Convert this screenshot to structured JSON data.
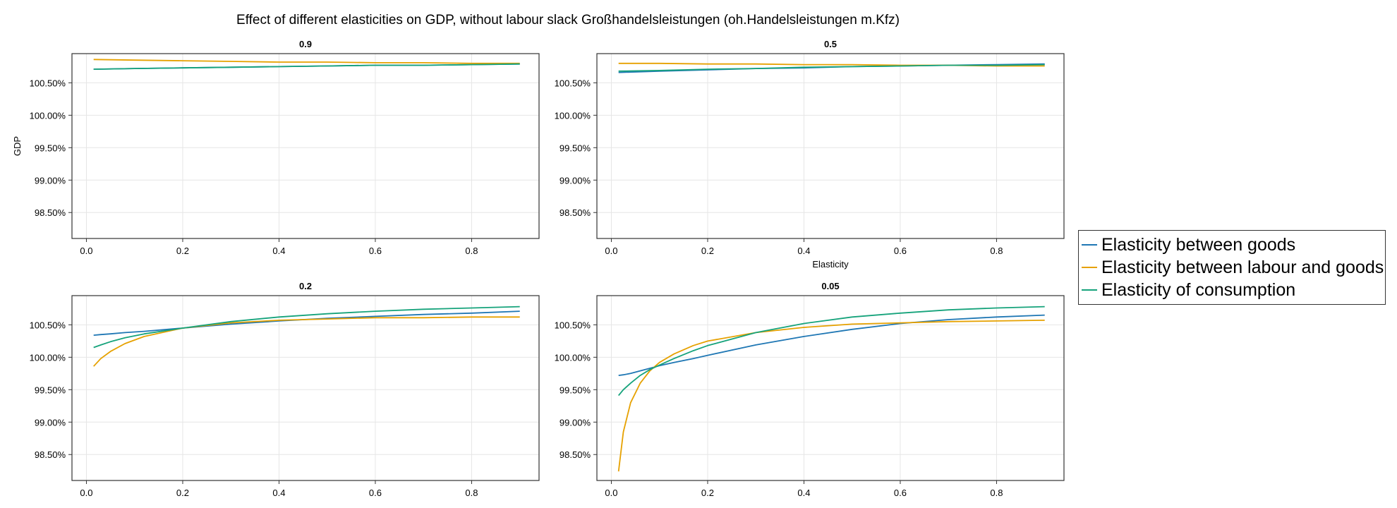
{
  "title": "Effect of different elasticities on GDP, without labour slack Großhandelsleistungen (oh.Handelsleistungen m.Kfz)",
  "legend": [
    {
      "name": "Elasticity between goods",
      "color": "#1f77b4"
    },
    {
      "name": "Elasticity between labour and goods",
      "color": "#e6a100"
    },
    {
      "name": "Elasticity of consumption",
      "color": "#16a37b"
    }
  ],
  "chart_data": [
    {
      "type": "line",
      "title": "0.9",
      "xlabel": "",
      "ylabel": "GDP",
      "xlim": [
        -0.03,
        0.94
      ],
      "ylim": [
        98.1,
        100.95
      ],
      "xticks": [
        "0.0",
        "0.2",
        "0.4",
        "0.6",
        "0.8"
      ],
      "yticks": [
        "98.50%",
        "99.00%",
        "99.50%",
        "100.00%",
        "100.50%"
      ],
      "x": [
        0.015,
        0.1,
        0.2,
        0.3,
        0.4,
        0.5,
        0.6,
        0.7,
        0.8,
        0.9
      ],
      "series": [
        {
          "name": "Elasticity between goods",
          "values": [
            100.71,
            100.72,
            100.73,
            100.74,
            100.75,
            100.76,
            100.77,
            100.77,
            100.78,
            100.79
          ]
        },
        {
          "name": "Elasticity between labour and goods",
          "values": [
            100.86,
            100.85,
            100.84,
            100.83,
            100.82,
            100.82,
            100.81,
            100.81,
            100.8,
            100.8
          ]
        },
        {
          "name": "Elasticity of consumption",
          "values": [
            100.71,
            100.72,
            100.73,
            100.74,
            100.75,
            100.76,
            100.77,
            100.77,
            100.78,
            100.79
          ]
        }
      ]
    },
    {
      "type": "line",
      "title": "0.5",
      "xlabel": "Elasticity",
      "ylabel": "",
      "xlim": [
        -0.03,
        0.94
      ],
      "ylim": [
        98.1,
        100.95
      ],
      "xticks": [
        "0.0",
        "0.2",
        "0.4",
        "0.6",
        "0.8"
      ],
      "yticks": [
        "98.50%",
        "99.00%",
        "99.50%",
        "100.00%",
        "100.50%"
      ],
      "x": [
        0.015,
        0.1,
        0.2,
        0.3,
        0.4,
        0.5,
        0.6,
        0.7,
        0.8,
        0.9
      ],
      "series": [
        {
          "name": "Elasticity between goods",
          "values": [
            100.66,
            100.68,
            100.7,
            100.72,
            100.73,
            100.75,
            100.76,
            100.77,
            100.78,
            100.79
          ]
        },
        {
          "name": "Elasticity between labour and goods",
          "values": [
            100.8,
            100.8,
            100.79,
            100.79,
            100.78,
            100.78,
            100.77,
            100.77,
            100.76,
            100.76
          ]
        },
        {
          "name": "Elasticity of consumption",
          "values": [
            100.68,
            100.69,
            100.71,
            100.72,
            100.74,
            100.75,
            100.76,
            100.77,
            100.77,
            100.78
          ]
        }
      ]
    },
    {
      "type": "line",
      "title": "0.2",
      "xlabel": "",
      "ylabel": "",
      "xlim": [
        -0.03,
        0.94
      ],
      "ylim": [
        98.1,
        100.95
      ],
      "xticks": [
        "0.0",
        "0.2",
        "0.4",
        "0.6",
        "0.8"
      ],
      "yticks": [
        "98.50%",
        "99.00%",
        "99.50%",
        "100.00%",
        "100.50%"
      ],
      "x": [
        0.015,
        0.03,
        0.05,
        0.08,
        0.12,
        0.2,
        0.3,
        0.4,
        0.5,
        0.6,
        0.7,
        0.8,
        0.9
      ],
      "series": [
        {
          "name": "Elasticity between goods",
          "values": [
            100.34,
            100.35,
            100.36,
            100.38,
            100.4,
            100.45,
            100.51,
            100.56,
            100.6,
            100.63,
            100.66,
            100.68,
            100.71
          ]
        },
        {
          "name": "Elasticity between labour and goods",
          "values": [
            99.86,
            99.98,
            100.09,
            100.21,
            100.32,
            100.45,
            100.53,
            100.57,
            100.59,
            100.61,
            100.61,
            100.62,
            100.62
          ]
        },
        {
          "name": "Elasticity of consumption",
          "values": [
            100.15,
            100.19,
            100.24,
            100.3,
            100.36,
            100.45,
            100.55,
            100.62,
            100.67,
            100.71,
            100.74,
            100.76,
            100.78
          ]
        }
      ]
    },
    {
      "type": "line",
      "title": "0.05",
      "xlabel": "",
      "ylabel": "",
      "xlim": [
        -0.03,
        0.94
      ],
      "ylim": [
        98.1,
        100.95
      ],
      "xticks": [
        "0.0",
        "0.2",
        "0.4",
        "0.6",
        "0.8"
      ],
      "yticks": [
        "98.50%",
        "99.00%",
        "99.50%",
        "100.00%",
        "100.50%"
      ],
      "x": [
        0.015,
        0.025,
        0.04,
        0.06,
        0.08,
        0.1,
        0.13,
        0.17,
        0.2,
        0.3,
        0.4,
        0.5,
        0.6,
        0.7,
        0.8,
        0.9
      ],
      "series": [
        {
          "name": "Elasticity between goods",
          "values": [
            99.72,
            99.73,
            99.75,
            99.79,
            99.83,
            99.87,
            99.92,
            99.98,
            100.03,
            100.19,
            100.32,
            100.43,
            100.52,
            100.58,
            100.62,
            100.65
          ]
        },
        {
          "name": "Elasticity between labour and goods",
          "values": [
            98.24,
            98.85,
            99.3,
            99.6,
            99.79,
            99.92,
            100.05,
            100.18,
            100.25,
            100.38,
            100.46,
            100.51,
            100.53,
            100.55,
            100.56,
            100.57
          ]
        },
        {
          "name": "Elasticity of consumption",
          "values": [
            99.41,
            99.5,
            99.6,
            99.72,
            99.81,
            99.88,
            99.98,
            100.1,
            100.18,
            100.38,
            100.52,
            100.62,
            100.68,
            100.73,
            100.76,
            100.78
          ]
        }
      ]
    }
  ]
}
